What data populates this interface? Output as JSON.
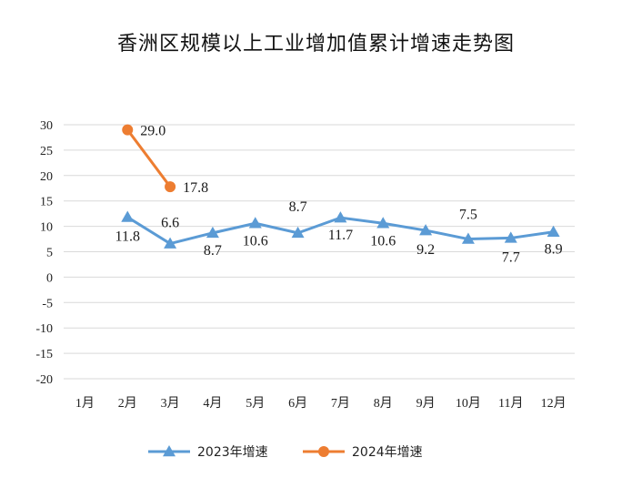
{
  "chart_data": {
    "type": "line",
    "title": "香洲区规模以上工业增加值累计增速走势图",
    "xlabel": "",
    "ylabel": "",
    "categories": [
      "1月",
      "2月",
      "3月",
      "4月",
      "5月",
      "6月",
      "7月",
      "8月",
      "9月",
      "10月",
      "11月",
      "12月"
    ],
    "yticks": [
      "30",
      "25",
      "20",
      "15",
      "10",
      "5",
      "0",
      "-5",
      "-10",
      "-15",
      "-20"
    ],
    "ylim": [
      -20,
      30
    ],
    "grid": true,
    "legend_position": "bottom",
    "series": [
      {
        "name": "2023年增速",
        "color": "#5b9bd5",
        "marker": "triangle",
        "values": [
          null,
          11.8,
          6.6,
          8.7,
          10.6,
          8.7,
          11.7,
          10.6,
          9.2,
          7.5,
          7.7,
          8.9
        ],
        "labels": [
          null,
          "11.8",
          "6.6",
          "8.7",
          "10.6",
          "8.7",
          "11.7",
          "10.6",
          "9.2",
          "7.5",
          "7.7",
          "8.9"
        ]
      },
      {
        "name": "2024年增速",
        "color": "#ed7d31",
        "marker": "circle",
        "values": [
          null,
          29.0,
          17.8,
          null,
          null,
          null,
          null,
          null,
          null,
          null,
          null,
          null
        ],
        "labels": [
          null,
          "29.0",
          "17.8",
          null,
          null,
          null,
          null,
          null,
          null,
          null,
          null,
          null
        ]
      }
    ]
  }
}
